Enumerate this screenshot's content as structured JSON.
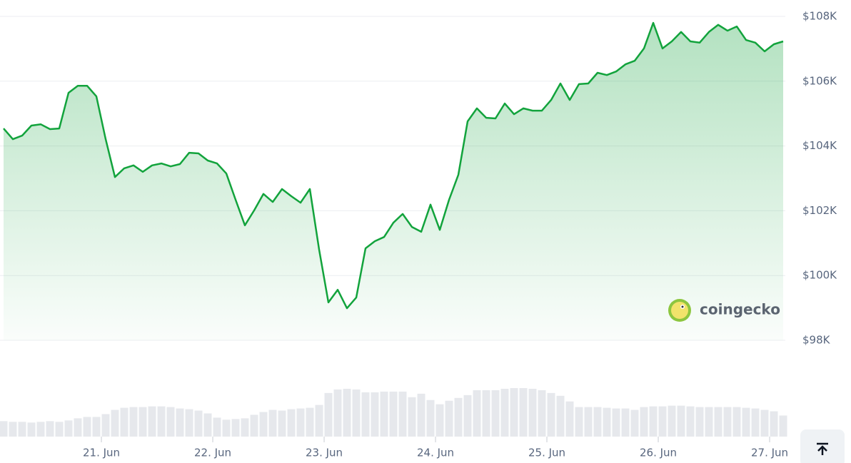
{
  "chart_data": {
    "type": "area",
    "color": "#12a33c",
    "grid": true,
    "values": [
      104540,
      104210,
      104320,
      104630,
      104670,
      104520,
      104540,
      105640,
      105860,
      105860,
      105530,
      104210,
      103040,
      103310,
      103400,
      103200,
      103400,
      103460,
      103370,
      103440,
      103790,
      103770,
      103550,
      103460,
      103150,
      102340,
      101550,
      102010,
      102520,
      102270,
      102670,
      102450,
      102250,
      102670,
      100800,
      99170,
      99560,
      98990,
      99320,
      100840,
      101060,
      101190,
      101630,
      101900,
      101500,
      101350,
      102190,
      101410,
      102340,
      103110,
      104760,
      105160,
      104870,
      104850,
      105310,
      104980,
      105160,
      105090,
      105090,
      105420,
      105930,
      105420,
      105910,
      105930,
      106260,
      106190,
      106300,
      106520,
      106630,
      107010,
      107800,
      107010,
      107230,
      107520,
      107230,
      107190,
      107520,
      107740,
      107560,
      107690,
      107270,
      107190,
      106920,
      107140,
      107230
    ],
    "xlim": [
      0,
      84
    ],
    "xticks": [
      {
        "value": 10.54,
        "label": "21. Jun"
      },
      {
        "value": 22.54,
        "label": "22. Jun"
      },
      {
        "value": 34.54,
        "label": "23. Jun"
      },
      {
        "value": 46.54,
        "label": "24. Jun"
      },
      {
        "value": 58.54,
        "label": "25. Jun"
      },
      {
        "value": 70.54,
        "label": "26. Jun"
      },
      {
        "value": 82.54,
        "label": "27. Jun"
      }
    ],
    "ylim": [
      98000,
      108000
    ],
    "yticks": [
      {
        "value": 98000,
        "label": "$98K"
      },
      {
        "value": 100000,
        "label": "$100K"
      },
      {
        "value": 102000,
        "label": "$102K"
      },
      {
        "value": 104000,
        "label": "$104K"
      },
      {
        "value": 106000,
        "label": "$106K"
      },
      {
        "value": 108000,
        "label": "$108K"
      }
    ],
    "volume": {
      "color": "#e6e8ec",
      "ylim": [
        0,
        70
      ],
      "values": [
        22,
        21,
        21,
        20,
        21,
        22,
        21,
        23,
        26,
        28,
        28,
        32,
        38,
        41,
        42,
        42,
        43,
        43,
        42,
        40,
        39,
        37,
        33,
        27,
        24,
        25,
        26,
        31,
        35,
        38,
        37,
        39,
        40,
        41,
        45,
        62,
        67,
        68,
        67,
        63,
        63,
        64,
        64,
        64,
        56,
        61,
        52,
        46,
        51,
        55,
        59,
        66,
        66,
        66,
        68,
        69,
        69,
        68,
        66,
        62,
        58,
        50,
        42,
        42,
        42,
        41,
        40,
        40,
        38,
        42,
        43,
        43,
        44,
        44,
        43,
        42,
        42,
        42,
        42,
        42,
        41,
        40,
        38,
        36,
        30
      ]
    },
    "watermark": "coingecko"
  }
}
